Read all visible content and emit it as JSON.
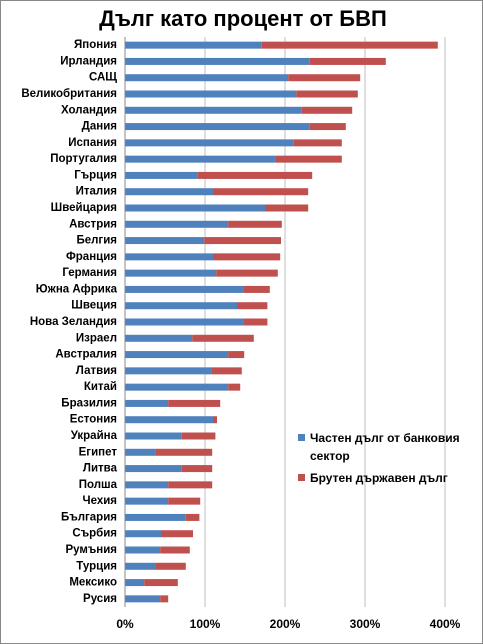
{
  "chart_data": {
    "type": "bar",
    "orientation": "horizontal",
    "stacked": true,
    "title": "Дълг като процент от БВП",
    "categories": [
      "Япония",
      "Ирландия",
      "САЩ",
      "Великобритания",
      "Холандия",
      "Дания",
      "Испания",
      "Португалия",
      "Гърция",
      "Италия",
      "Швейцария",
      "Австрия",
      "Белгия",
      "Франция",
      "Германия",
      "Южна Африка",
      "Швеция",
      "Нова Зеландия",
      "Израел",
      "Австралия",
      "Латвия",
      "Китай",
      "Бразилия",
      "Естония",
      "Украйна",
      "Египет",
      "Литва",
      "Полша",
      "Чехия",
      "България",
      "Сърбия",
      "Румъния",
      "Турция",
      "Мексико",
      "Русия"
    ],
    "series": [
      {
        "name": "Частен дълг от банковия сектор",
        "color": "#4f81bd",
        "values": [
          171,
          231,
          204,
          214,
          221,
          231,
          211,
          188,
          91,
          110,
          175,
          129,
          99,
          110,
          114,
          148,
          140,
          148,
          84,
          129,
          108,
          129,
          54,
          110,
          71,
          38,
          71,
          54,
          54,
          76,
          45,
          44,
          38,
          24,
          44
        ]
      },
      {
        "name": "Брутен държавен дълг",
        "color": "#c0504d",
        "values": [
          220,
          95,
          90,
          77,
          63,
          45,
          60,
          83,
          143,
          119,
          54,
          67,
          96,
          84,
          77,
          33,
          38,
          30,
          77,
          20,
          38,
          15,
          65,
          5,
          42,
          71,
          38,
          55,
          40,
          17,
          40,
          37,
          38,
          42,
          10
        ]
      }
    ],
    "xlim": [
      0,
      400
    ],
    "xticks": [
      {
        "value": 0,
        "label": "0%"
      },
      {
        "value": 100,
        "label": "100%"
      },
      {
        "value": 200,
        "label": "200%"
      },
      {
        "value": 300,
        "label": "300%"
      },
      {
        "value": 400,
        "label": "400%"
      }
    ],
    "grid": true,
    "legend": "right"
  }
}
